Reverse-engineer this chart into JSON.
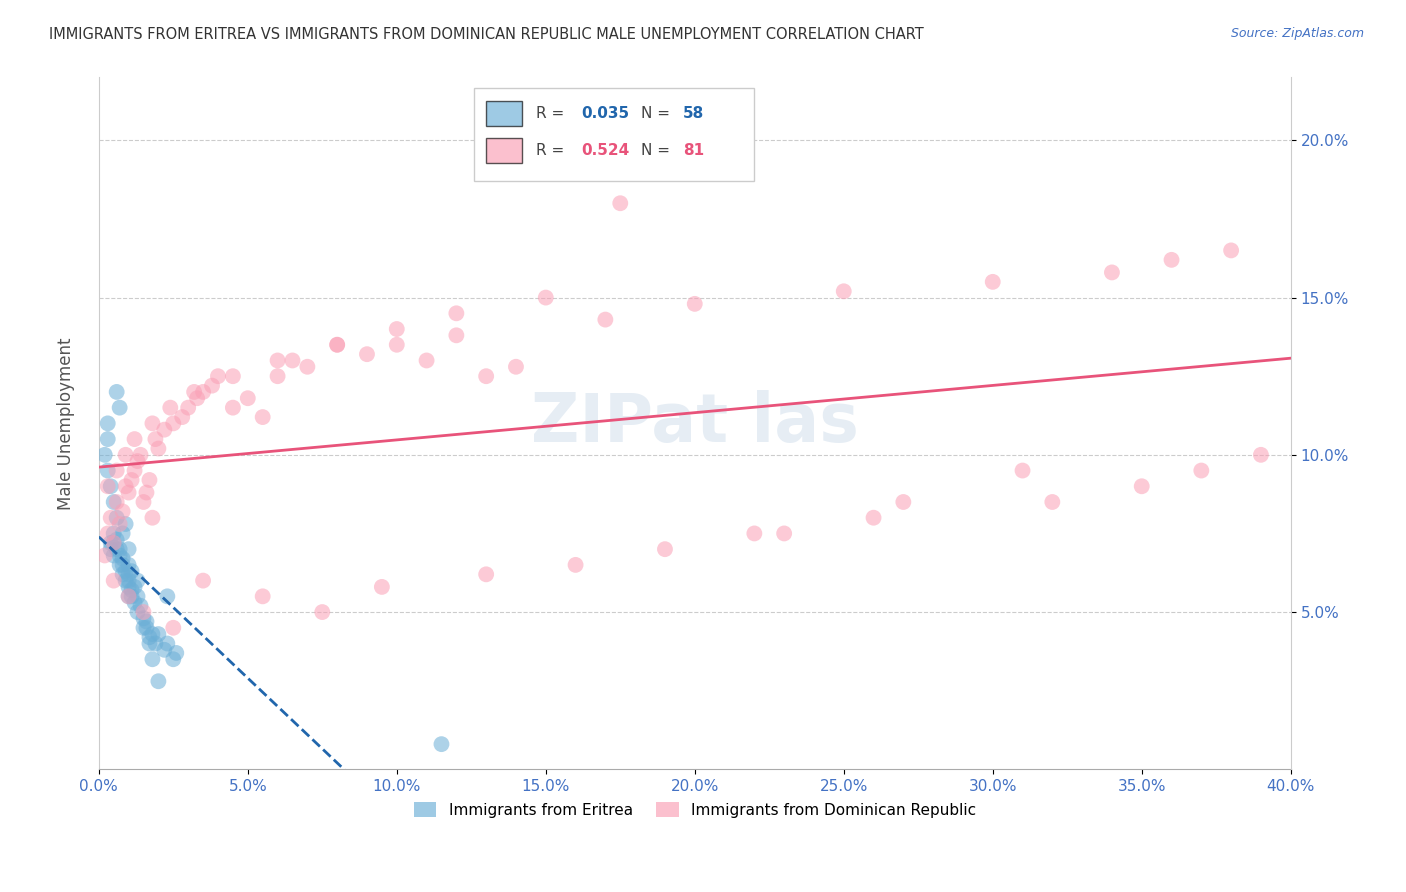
{
  "title": "IMMIGRANTS FROM ERITREA VS IMMIGRANTS FROM DOMINICAN REPUBLIC MALE UNEMPLOYMENT CORRELATION CHART",
  "source": "Source: ZipAtlas.com",
  "tick_color": "#4472c4",
  "ylabel": "Male Unemployment",
  "xlim": [
    0.0,
    0.4
  ],
  "ylim": [
    0.0,
    0.22
  ],
  "ytick_positions": [
    0.05,
    0.1,
    0.15,
    0.2
  ],
  "ytick_labels": [
    "5.0%",
    "10.0%",
    "15.0%",
    "20.0%"
  ],
  "xtick_positions": [
    0.0,
    0.05,
    0.1,
    0.15,
    0.2,
    0.25,
    0.3,
    0.35,
    0.4
  ],
  "xtick_labels": [
    "0.0%",
    "5.0%",
    "10.0%",
    "15.0%",
    "20.0%",
    "25.0%",
    "30.0%",
    "35.0%",
    "40.0%"
  ],
  "legend_r1": "0.035",
  "legend_n1": "58",
  "legend_r2": "0.524",
  "legend_n2": "81",
  "series1_color": "#6baed6",
  "series2_color": "#fa9fb5",
  "line1_color": "#2166ac",
  "line2_color": "#e8537a",
  "eritrea_x": [
    0.002,
    0.003,
    0.003,
    0.004,
    0.004,
    0.005,
    0.005,
    0.005,
    0.006,
    0.006,
    0.007,
    0.007,
    0.007,
    0.008,
    0.008,
    0.008,
    0.009,
    0.009,
    0.01,
    0.01,
    0.01,
    0.01,
    0.011,
    0.011,
    0.012,
    0.012,
    0.013,
    0.013,
    0.014,
    0.015,
    0.015,
    0.016,
    0.017,
    0.018,
    0.019,
    0.02,
    0.022,
    0.023,
    0.025,
    0.026,
    0.003,
    0.004,
    0.005,
    0.006,
    0.006,
    0.007,
    0.008,
    0.009,
    0.01,
    0.01,
    0.011,
    0.013,
    0.016,
    0.017,
    0.018,
    0.02,
    0.023,
    0.115
  ],
  "eritrea_y": [
    0.1,
    0.105,
    0.095,
    0.07,
    0.072,
    0.068,
    0.072,
    0.075,
    0.07,
    0.073,
    0.068,
    0.07,
    0.065,
    0.067,
    0.065,
    0.062,
    0.063,
    0.06,
    0.062,
    0.058,
    0.055,
    0.06,
    0.057,
    0.055,
    0.058,
    0.053,
    0.055,
    0.05,
    0.052,
    0.048,
    0.045,
    0.047,
    0.042,
    0.043,
    0.04,
    0.043,
    0.038,
    0.04,
    0.035,
    0.037,
    0.11,
    0.09,
    0.085,
    0.12,
    0.08,
    0.115,
    0.075,
    0.078,
    0.07,
    0.065,
    0.063,
    0.06,
    0.045,
    0.04,
    0.035,
    0.028,
    0.055,
    0.008
  ],
  "dominican_x": [
    0.002,
    0.003,
    0.004,
    0.005,
    0.006,
    0.007,
    0.008,
    0.009,
    0.01,
    0.011,
    0.012,
    0.013,
    0.014,
    0.015,
    0.016,
    0.017,
    0.018,
    0.019,
    0.02,
    0.022,
    0.025,
    0.028,
    0.03,
    0.033,
    0.035,
    0.038,
    0.04,
    0.045,
    0.05,
    0.055,
    0.06,
    0.065,
    0.07,
    0.08,
    0.09,
    0.1,
    0.11,
    0.12,
    0.13,
    0.14,
    0.003,
    0.006,
    0.009,
    0.012,
    0.018,
    0.024,
    0.032,
    0.045,
    0.06,
    0.08,
    0.1,
    0.12,
    0.15,
    0.17,
    0.2,
    0.25,
    0.3,
    0.34,
    0.36,
    0.38,
    0.005,
    0.01,
    0.015,
    0.025,
    0.035,
    0.055,
    0.075,
    0.095,
    0.13,
    0.16,
    0.19,
    0.22,
    0.26,
    0.32,
    0.35,
    0.37,
    0.39,
    0.31,
    0.27,
    0.23,
    0.175
  ],
  "dominican_y": [
    0.068,
    0.075,
    0.08,
    0.072,
    0.085,
    0.078,
    0.082,
    0.09,
    0.088,
    0.092,
    0.095,
    0.098,
    0.1,
    0.085,
    0.088,
    0.092,
    0.08,
    0.105,
    0.102,
    0.108,
    0.11,
    0.112,
    0.115,
    0.118,
    0.12,
    0.122,
    0.125,
    0.115,
    0.118,
    0.112,
    0.125,
    0.13,
    0.128,
    0.135,
    0.132,
    0.135,
    0.13,
    0.138,
    0.125,
    0.128,
    0.09,
    0.095,
    0.1,
    0.105,
    0.11,
    0.115,
    0.12,
    0.125,
    0.13,
    0.135,
    0.14,
    0.145,
    0.15,
    0.143,
    0.148,
    0.152,
    0.155,
    0.158,
    0.162,
    0.165,
    0.06,
    0.055,
    0.05,
    0.045,
    0.06,
    0.055,
    0.05,
    0.058,
    0.062,
    0.065,
    0.07,
    0.075,
    0.08,
    0.085,
    0.09,
    0.095,
    0.1,
    0.095,
    0.085,
    0.075,
    0.18
  ]
}
